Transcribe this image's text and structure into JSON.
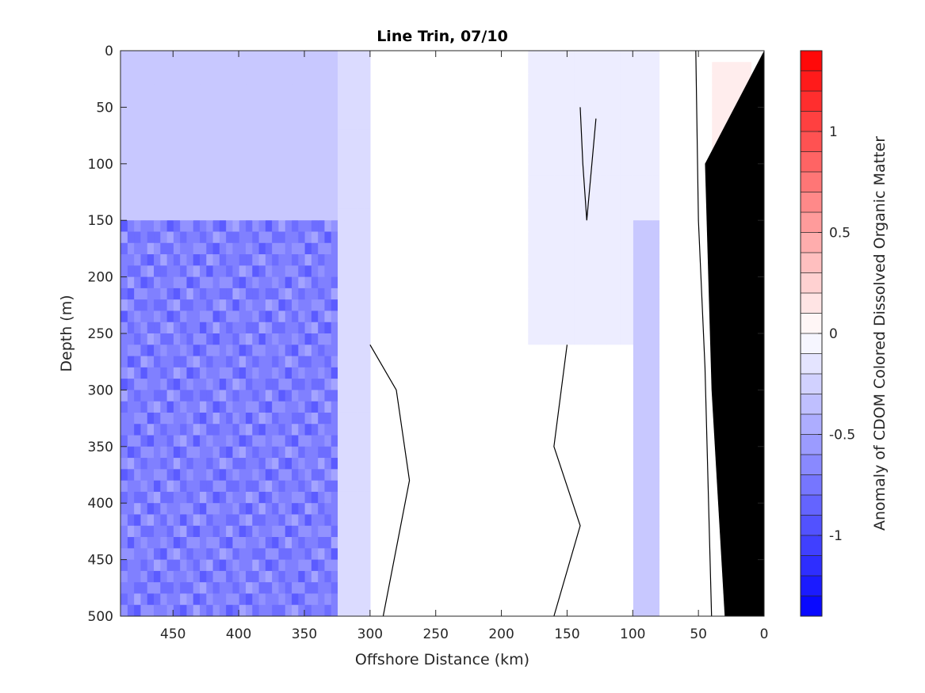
{
  "chart_data": {
    "type": "heatmap",
    "title": "Line Trin, 07/10",
    "xlabel": "Offshore Distance (km)",
    "ylabel": "Depth (m)",
    "colorbar_label": "Anomaly of CDOM Colored Dissolved Organic Matter",
    "x_reversed": true,
    "xlim": [
      0,
      490
    ],
    "ylim": [
      0,
      500
    ],
    "y_reversed": true,
    "clim": [
      -1.4,
      1.4
    ],
    "x_ticks": [
      450,
      400,
      350,
      300,
      250,
      200,
      150,
      100,
      50,
      0
    ],
    "x_tick_labels": [
      "450",
      "400",
      "350",
      "300",
      "250",
      "200",
      "150",
      "100",
      "50",
      "0"
    ],
    "y_ticks": [
      0,
      50,
      100,
      150,
      200,
      250,
      300,
      350,
      400,
      450,
      500
    ],
    "y_tick_labels": [
      "0",
      "50",
      "100",
      "150",
      "200",
      "250",
      "300",
      "350",
      "400",
      "450",
      "500"
    ],
    "colorbar_ticks": [
      1,
      0.5,
      0,
      -0.5,
      -1
    ],
    "colorbar_tick_labels": [
      "1",
      "0.5",
      "0",
      "-0.5",
      "-1"
    ],
    "colorbar_levels": [
      -1.4,
      -1.3,
      -1.2,
      -1.1,
      -1.0,
      -0.9,
      -0.8,
      -0.7,
      -0.6,
      -0.5,
      -0.4,
      -0.3,
      -0.2,
      -0.1,
      0,
      0.1,
      0.2,
      0.3,
      0.4,
      0.5,
      0.6,
      0.7,
      0.8,
      0.9,
      1.0,
      1.1,
      1.2,
      1.3,
      1.4
    ],
    "regions": [
      {
        "x": [
          325,
          490
        ],
        "y": [
          0,
          155
        ],
        "anomaly": -0.35
      },
      {
        "x": [
          325,
          490
        ],
        "y": [
          155,
          500
        ],
        "anomaly": -0.7
      },
      {
        "x": [
          300,
          325
        ],
        "y": [
          0,
          500
        ],
        "anomaly": -0.25
      },
      {
        "x": [
          180,
          300
        ],
        "y": [
          0,
          160
        ],
        "anomaly": 0.0
      },
      {
        "x": [
          70,
          180
        ],
        "y": [
          0,
          260
        ],
        "anomaly": -0.1
      },
      {
        "x": [
          80,
          100
        ],
        "y": [
          150,
          500
        ],
        "anomaly": -0.3
      },
      {
        "x": [
          130,
          300
        ],
        "y": [
          260,
          500
        ],
        "anomaly": 0.0
      },
      {
        "x": [
          20,
          80
        ],
        "y": [
          0,
          500
        ],
        "anomaly": -0.05
      },
      {
        "x": [
          10,
          40
        ],
        "y": [
          10,
          220
        ],
        "anomaly": 0.1
      }
    ],
    "bathymetry_color": "#000000",
    "colormap": {
      "negative": "#0000ff",
      "zero": "#ffffff",
      "positive": "#ff0000"
    }
  }
}
